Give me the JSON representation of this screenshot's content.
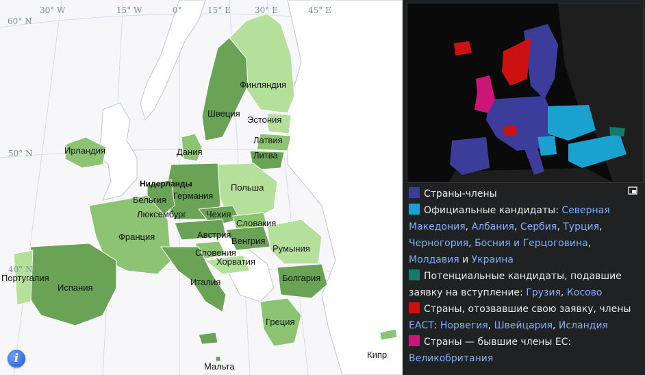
{
  "map": {
    "longitude_labels": [
      "30° W",
      "15° W",
      "0°",
      "15° E",
      "30° E",
      "45° E"
    ],
    "latitude_labels": [
      "60° N",
      "50° N",
      "40° N"
    ],
    "countries": [
      {
        "label": "Финляндия"
      },
      {
        "label": "Швеция"
      },
      {
        "label": "Эстония"
      },
      {
        "label": "Латвия"
      },
      {
        "label": "Литва"
      },
      {
        "label": "Ирландия"
      },
      {
        "label": "Дания"
      },
      {
        "label": "Нидерланды"
      },
      {
        "label": "Польша"
      },
      {
        "label": "Бельгия"
      },
      {
        "label": "Германия"
      },
      {
        "label": "Люксембург"
      },
      {
        "label": "Чехия"
      },
      {
        "label": "Словакия"
      },
      {
        "label": "Франция"
      },
      {
        "label": "Австрия"
      },
      {
        "label": "Венгрия"
      },
      {
        "label": "Румыния"
      },
      {
        "label": "Словения"
      },
      {
        "label": "Хорватия"
      },
      {
        "label": "Португалия"
      },
      {
        "label": "Италия"
      },
      {
        "label": "Болгария"
      },
      {
        "label": "Испания"
      },
      {
        "label": "Греция"
      },
      {
        "label": "Кипр"
      },
      {
        "label": "Мальта"
      }
    ]
  },
  "legend": {
    "members": {
      "color": "#3c3c9a",
      "text": "Страны-члены"
    },
    "candidates": {
      "color": "#1aa1cf",
      "text": "Официальные кандидаты: ",
      "links": [
        "Северная Македония",
        "Албания",
        "Сербия",
        "Турция",
        "Черногория",
        "Босния и Герцоговина",
        "Молдавия",
        "Украина"
      ],
      "conjunction": "и"
    },
    "potential": {
      "color": "#157a6a",
      "text": "Потенциальные кандидаты, подавшие заявку на вступление: ",
      "links": [
        "Грузия",
        "Косово"
      ]
    },
    "withdrawn": {
      "color": "#cc1111",
      "text": "Страны, отозвавшие свою заявку, члены ",
      "links": [
        "ЕАСТ",
        "Норвегия",
        "Швейцария",
        "Исландия"
      ]
    },
    "former": {
      "color": "#cc1677",
      "text": "Страны — бывшие члены ЕС: ",
      "links": [
        "Великобритания"
      ]
    }
  },
  "icons": {
    "info": "info-icon",
    "expand": "expand-icon"
  },
  "colors": {
    "sea": "#f7f7f9",
    "non_eu_land": "#ffffff",
    "eu_dark": "#6aa356",
    "eu_mid": "#8cc473",
    "eu_light": "#b4e09c"
  }
}
